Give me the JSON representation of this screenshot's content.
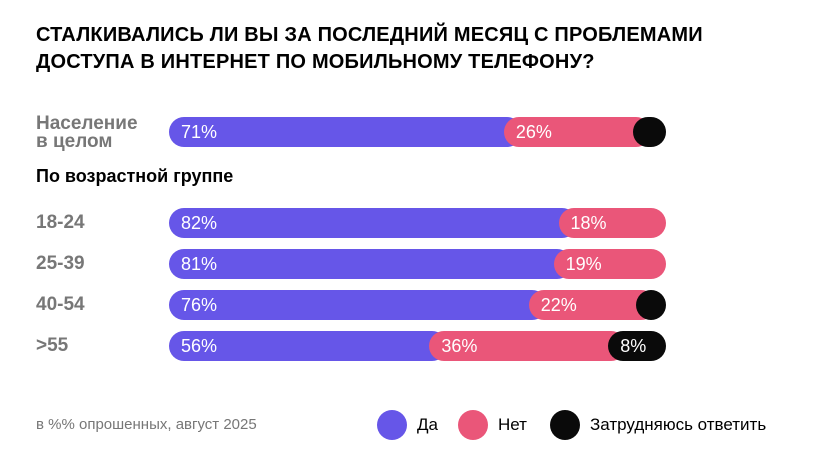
{
  "chart_data": {
    "type": "bar",
    "stacked": true,
    "orientation": "horizontal",
    "title": [
      "СТАЛКИВАЛИСЬ ЛИ ВЫ ЗА ПОСЛЕДНИЙ МЕСЯЦ С ПРОБЛЕМАМИ",
      "ДОСТУПА В ИНТЕРНЕТ ПО МОБИЛЬНОМУ ТЕЛЕФОНУ?"
    ],
    "section_label": "По возрастной группе",
    "categories": [
      "Население в целом",
      "18-24",
      "25-39",
      "40-54",
      ">55"
    ],
    "series": [
      {
        "name": "Да",
        "color": "#6656e8",
        "values": [
          71,
          82,
          81,
          76,
          56
        ],
        "labels": [
          "71%",
          "82%",
          "81%",
          "76%",
          "56%"
        ]
      },
      {
        "name": "Нет",
        "color": "#ea5679",
        "values": [
          26,
          18,
          19,
          22,
          36
        ],
        "labels": [
          "26%",
          "18%",
          "19%",
          "22%",
          "36%"
        ]
      },
      {
        "name": "Затрудняюсь ответить",
        "color": "#0a0a0a",
        "values": [
          3,
          0,
          0,
          2,
          8
        ],
        "labels": [
          "",
          "",
          "",
          "",
          "8%"
        ]
      }
    ],
    "xlim": [
      0,
      100
    ],
    "note": "в %% опрошенных, август 2025",
    "legend_position": "bottom-right"
  }
}
